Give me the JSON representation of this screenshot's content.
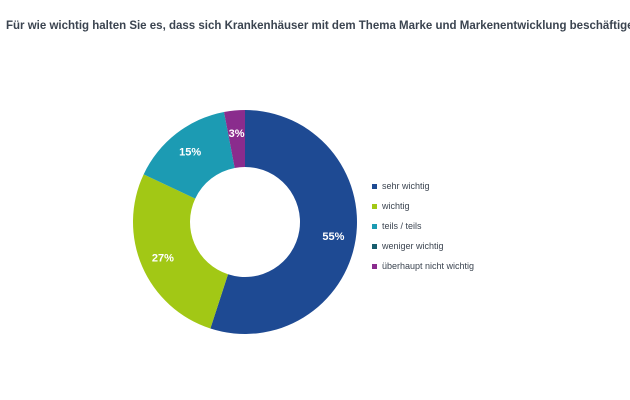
{
  "title": "Für wie wichtig halten Sie es, dass sich Krankenhäuser mit dem Thema Marke und Markenentwicklung beschäftigen?",
  "chart_data": {
    "type": "pie",
    "donut": true,
    "title": "Für wie wichtig halten Sie es, dass sich Krankenhäuser mit dem Thema Marke und Markenentwicklung beschäftigen?",
    "legend_position": "right",
    "categories": [
      "sehr wichtig",
      "wichtig",
      "teils / teils",
      "weniger wichtig",
      "überhaupt nicht wichtig"
    ],
    "values": [
      55,
      27,
      15,
      0,
      3
    ],
    "data_labels": [
      "55%",
      "27%",
      "15%",
      "",
      "3%"
    ],
    "colors": [
      "#1e4a93",
      "#a2c815",
      "#1c9bb3",
      "#185d6d",
      "#8a2c8d"
    ]
  }
}
